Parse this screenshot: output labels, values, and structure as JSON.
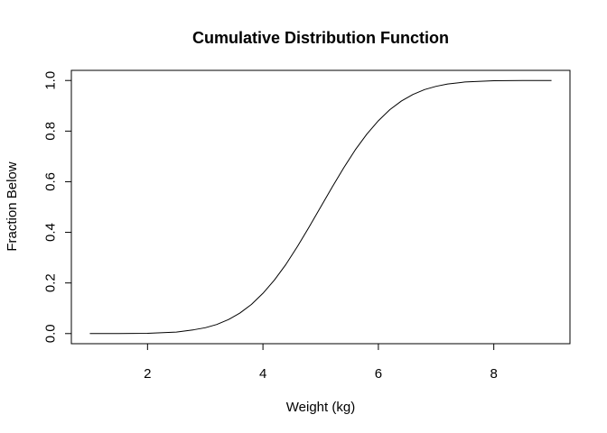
{
  "chart_data": {
    "type": "line",
    "title": "Cumulative Distribution Function",
    "xlabel": "Weight (kg)",
    "ylabel": "Fraction Below",
    "xlim": [
      0.68,
      9.32
    ],
    "ylim": [
      -0.04,
      1.04
    ],
    "x_ticks": [
      2,
      4,
      6,
      8
    ],
    "y_ticks": [
      0.0,
      0.2,
      0.4,
      0.6,
      0.8,
      1.0
    ],
    "x_tick_labels": [
      "2",
      "4",
      "6",
      "8"
    ],
    "y_tick_labels": [
      "0.0",
      "0.2",
      "0.4",
      "0.6",
      "0.8",
      "1.0"
    ],
    "grid": false,
    "series": [
      {
        "x": [
          1.0,
          1.5,
          2.0,
          2.5,
          2.8,
          3.0,
          3.2,
          3.4,
          3.6,
          3.8,
          4.0,
          4.2,
          4.4,
          4.6,
          4.8,
          5.0,
          5.2,
          5.4,
          5.6,
          5.8,
          6.0,
          6.2,
          6.4,
          6.6,
          6.8,
          7.0,
          7.2,
          7.5,
          8.0,
          8.5,
          9.0
        ],
        "y": [
          0.0,
          0.0,
          0.001,
          0.006,
          0.015,
          0.023,
          0.036,
          0.055,
          0.081,
          0.115,
          0.159,
          0.212,
          0.274,
          0.345,
          0.421,
          0.5,
          0.579,
          0.655,
          0.726,
          0.788,
          0.841,
          0.885,
          0.919,
          0.945,
          0.964,
          0.977,
          0.986,
          0.994,
          0.999,
          1.0,
          1.0
        ],
        "color": "#000000"
      }
    ]
  }
}
